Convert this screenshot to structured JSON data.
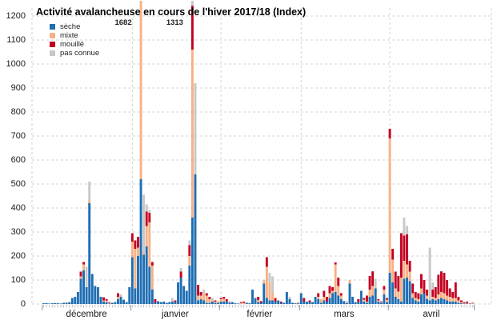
{
  "chart_data": {
    "type": "bar",
    "stacked": true,
    "title": "Activité avalancheuse en cours de l'hiver 2017/18 (Index)",
    "xlabel": "",
    "ylabel": "",
    "ylim": [
      0,
      1200
    ],
    "y_ticks": [
      0,
      100,
      200,
      300,
      400,
      500,
      600,
      700,
      800,
      900,
      1000,
      1100,
      1200
    ],
    "grid": true,
    "legend_position": "top-left",
    "series": [
      {
        "name": "sèche",
        "color": "#1f6eb3"
      },
      {
        "name": "mixte",
        "color": "#f7b185"
      },
      {
        "name": "mouillé",
        "color": "#c40021"
      },
      {
        "name": "pas connue",
        "color": "#c8c8c8"
      }
    ],
    "values_note": "per day stacked values in series order [sèche, mixte, mouillé, pas connue]",
    "months": [
      {
        "label": "décembre",
        "days": [
          [
            3,
            0,
            0,
            0
          ],
          [
            4,
            0,
            0,
            0
          ],
          [
            2,
            0,
            0,
            0
          ],
          [
            3,
            0,
            0,
            0
          ],
          [
            4,
            0,
            0,
            0
          ],
          [
            3,
            0,
            0,
            0
          ],
          [
            2,
            0,
            0,
            0
          ],
          [
            5,
            0,
            0,
            0
          ],
          [
            5,
            2,
            0,
            0
          ],
          [
            7,
            2,
            0,
            0
          ],
          [
            25,
            0,
            0,
            0
          ],
          [
            30,
            0,
            0,
            0
          ],
          [
            50,
            0,
            0,
            0
          ],
          [
            105,
            10,
            20,
            0
          ],
          [
            140,
            25,
            10,
            0
          ],
          [
            70,
            0,
            0,
            85
          ],
          [
            420,
            10,
            0,
            80
          ],
          [
            125,
            0,
            0,
            0
          ],
          [
            75,
            0,
            0,
            0
          ],
          [
            70,
            0,
            0,
            0
          ],
          [
            30,
            0,
            0,
            0
          ],
          [
            10,
            5,
            13,
            0
          ],
          [
            8,
            6,
            6,
            0
          ],
          [
            2,
            3,
            3,
            0
          ],
          [
            5,
            0,
            0,
            0
          ],
          [
            8,
            0,
            0,
            0
          ],
          [
            20,
            10,
            15,
            0
          ],
          [
            30,
            0,
            0,
            10
          ],
          [
            18,
            0,
            0,
            0
          ],
          [
            8,
            0,
            0,
            0
          ],
          [
            70,
            0,
            0,
            0
          ]
        ]
      },
      {
        "label": "janvier",
        "days": [
          [
            195,
            65,
            35,
            0
          ],
          [
            65,
            165,
            35,
            0
          ],
          [
            200,
            35,
            45,
            0
          ],
          [
            520,
            1150,
            0,
            12
          ],
          [
            205,
            10,
            0,
            240
          ],
          [
            240,
            85,
            60,
            30
          ],
          [
            155,
            185,
            40,
            10
          ],
          [
            60,
            100,
            15,
            0
          ],
          [
            5,
            0,
            15,
            0
          ],
          [
            12,
            0,
            0,
            0
          ],
          [
            8,
            0,
            0,
            0
          ],
          [
            10,
            0,
            0,
            0
          ],
          [
            5,
            0,
            0,
            0
          ],
          [
            8,
            0,
            0,
            0
          ],
          [
            10,
            0,
            0,
            15
          ],
          [
            8,
            0,
            7,
            0
          ],
          [
            90,
            0,
            0,
            0
          ],
          [
            110,
            0,
            25,
            15
          ],
          [
            75,
            0,
            0,
            0
          ],
          [
            55,
            0,
            0,
            0
          ],
          [
            160,
            40,
            45,
            20
          ],
          [
            360,
            700,
            183,
            70
          ],
          [
            540,
            0,
            0,
            380
          ],
          [
            15,
            20,
            45,
            0
          ],
          [
            20,
            15,
            15,
            0
          ],
          [
            15,
            25,
            0,
            20
          ],
          [
            5,
            30,
            10,
            0
          ],
          [
            5,
            15,
            10,
            0
          ],
          [
            10,
            5,
            0,
            10
          ],
          [
            5,
            5,
            5,
            0
          ],
          [
            5,
            7,
            0,
            0
          ]
        ]
      },
      {
        "label": "février",
        "days": [
          [
            10,
            10,
            5,
            0
          ],
          [
            10,
            12,
            8,
            0
          ],
          [
            12,
            0,
            8,
            0
          ],
          [
            6,
            6,
            0,
            0
          ],
          [
            8,
            0,
            0,
            0
          ],
          [
            3,
            0,
            0,
            0
          ],
          [
            2,
            0,
            0,
            0
          ],
          [
            0,
            4,
            4,
            0
          ],
          [
            0,
            5,
            5,
            0
          ],
          [
            5,
            0,
            0,
            0
          ],
          [
            3,
            0,
            0,
            0
          ],
          [
            60,
            0,
            0,
            0
          ],
          [
            25,
            0,
            0,
            0
          ],
          [
            8,
            8,
            14,
            0
          ],
          [
            5,
            0,
            7,
            0
          ],
          [
            85,
            10,
            0,
            5
          ],
          [
            25,
            130,
            40,
            0
          ],
          [
            15,
            75,
            0,
            40
          ],
          [
            15,
            30,
            0,
            70
          ],
          [
            10,
            0,
            15,
            0
          ],
          [
            15,
            0,
            0,
            0
          ],
          [
            5,
            0,
            5,
            0
          ],
          [
            5,
            0,
            0,
            0
          ],
          [
            50,
            0,
            0,
            0
          ],
          [
            20,
            0,
            0,
            10
          ],
          [
            5,
            0,
            0,
            0
          ],
          [
            3,
            0,
            0,
            0
          ],
          [
            3,
            5,
            0,
            0
          ]
        ]
      },
      {
        "label": "mars",
        "days": [
          [
            45,
            0,
            0,
            0
          ],
          [
            10,
            0,
            15,
            0
          ],
          [
            10,
            0,
            0,
            0
          ],
          [
            8,
            0,
            7,
            0
          ],
          [
            8,
            0,
            0,
            0
          ],
          [
            30,
            0,
            0,
            0
          ],
          [
            20,
            10,
            15,
            0
          ],
          [
            5,
            15,
            0,
            0
          ],
          [
            15,
            15,
            25,
            0
          ],
          [
            10,
            0,
            20,
            0
          ],
          [
            25,
            20,
            30,
            0
          ],
          [
            45,
            10,
            15,
            0
          ],
          [
            50,
            115,
            8,
            0
          ],
          [
            35,
            40,
            35,
            0
          ],
          [
            20,
            15,
            10,
            0
          ],
          [
            12,
            0,
            0,
            0
          ],
          [
            4,
            4,
            0,
            4
          ],
          [
            85,
            15,
            0,
            0
          ],
          [
            30,
            0,
            0,
            0
          ],
          [
            8,
            0,
            0,
            0
          ],
          [
            8,
            0,
            12,
            0
          ],
          [
            55,
            0,
            0,
            0
          ],
          [
            10,
            8,
            7,
            0
          ],
          [
            5,
            5,
            25,
            0
          ],
          [
            30,
            30,
            57,
            0
          ],
          [
            35,
            40,
            61,
            0
          ],
          [
            65,
            0,
            0,
            40
          ],
          [
            10,
            5,
            5,
            0
          ],
          [
            5,
            3,
            3,
            0
          ],
          [
            40,
            20,
            15,
            0
          ],
          [
            8,
            10,
            7,
            0
          ]
        ]
      },
      {
        "label": "avril",
        "days": [
          [
            130,
            560,
            40,
            0
          ],
          [
            90,
            95,
            45,
            0
          ],
          [
            30,
            35,
            70,
            0
          ],
          [
            20,
            32,
            65,
            0
          ],
          [
            10,
            100,
            185,
            0
          ],
          [
            105,
            75,
            105,
            75
          ],
          [
            110,
            55,
            125,
            35
          ],
          [
            95,
            40,
            45,
            0
          ],
          [
            25,
            20,
            40,
            0
          ],
          [
            15,
            10,
            25,
            0
          ],
          [
            10,
            10,
            25,
            0
          ],
          [
            40,
            25,
            60,
            0
          ],
          [
            45,
            0,
            55,
            0
          ],
          [
            20,
            15,
            25,
            0
          ],
          [
            15,
            0,
            0,
            220
          ],
          [
            20,
            10,
            30,
            30
          ],
          [
            15,
            10,
            45,
            0
          ],
          [
            20,
            20,
            82,
            0
          ],
          [
            25,
            25,
            86,
            0
          ],
          [
            20,
            25,
            85,
            0
          ],
          [
            15,
            20,
            65,
            0
          ],
          [
            10,
            20,
            35,
            0
          ],
          [
            10,
            15,
            25,
            0
          ],
          [
            10,
            15,
            65,
            0
          ],
          [
            5,
            10,
            15,
            0
          ],
          [
            3,
            5,
            7,
            0
          ],
          [
            2,
            2,
            4,
            0
          ],
          [
            2,
            2,
            6,
            0
          ],
          [
            1,
            1,
            1,
            0
          ],
          [
            1,
            2,
            2,
            0
          ]
        ]
      },
      {
        "label": "",
        "days": []
      }
    ],
    "annotations": [
      {
        "text": "1682",
        "month_index": 1,
        "day": 4
      },
      {
        "text": "1313",
        "month_index": 1,
        "day": 22
      }
    ]
  }
}
